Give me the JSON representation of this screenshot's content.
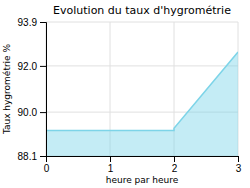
{
  "chart_data": {
    "type": "area",
    "title": "Evolution du taux d'hygrométrie",
    "xlabel": "heure par heure",
    "ylabel": "Taux hygrométrie %",
    "x": [
      0,
      2,
      2,
      3
    ],
    "values": [
      89.2,
      89.2,
      89.3,
      92.6
    ],
    "color": "#7dd4e8",
    "xlim": [
      0,
      3
    ],
    "ylim": [
      88.1,
      93.9
    ],
    "xticks": [
      0,
      1,
      2,
      3
    ],
    "yticks": [
      88.1,
      {
        "value": 90.0,
        "label": "90.0"
      },
      {
        "value": 92.0,
        "label": "92.0"
      },
      93.9
    ],
    "grid": true
  }
}
